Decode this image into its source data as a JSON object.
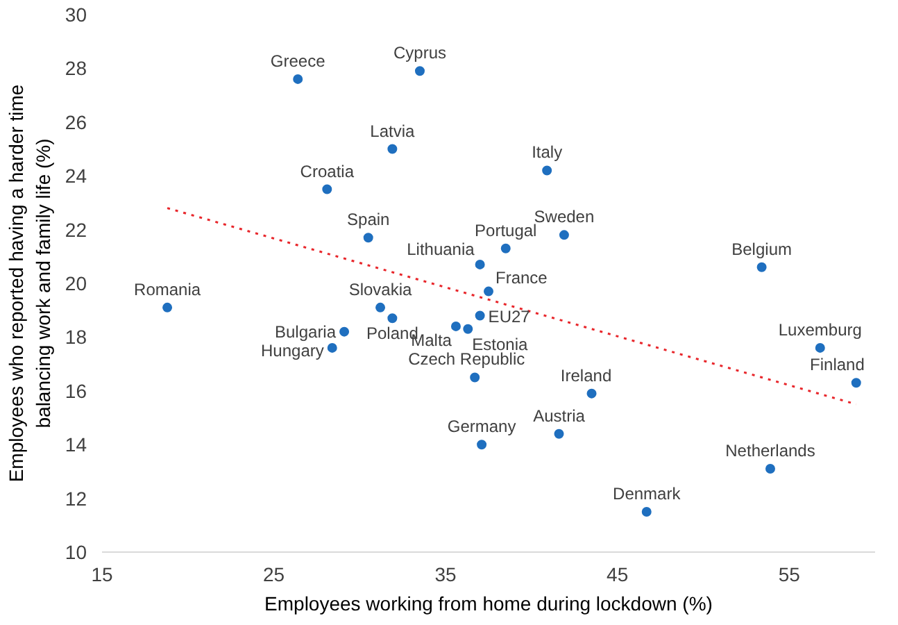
{
  "chart_data": {
    "type": "scatter",
    "xlabel": "Employees working from home during lockdown (%)",
    "ylabel": "Employees who reported having a harder time\nbalancing work and family life (%)",
    "xlim": [
      15,
      60
    ],
    "xticks": [
      15,
      25,
      35,
      45,
      55
    ],
    "ylim": [
      10,
      30
    ],
    "yticks": [
      10,
      12,
      14,
      16,
      18,
      20,
      22,
      24,
      26,
      28,
      30
    ],
    "grid": false,
    "series": [
      {
        "color": "#1f6fbf",
        "marker": "circle",
        "x": [
          26.4,
          33.5,
          31.9,
          40.9,
          28.1,
          30.5,
          38.5,
          41.9,
          37.0,
          53.4,
          18.8,
          37.5,
          31.2,
          37.0,
          35.6,
          36.3,
          29.1,
          31.9,
          28.4,
          56.8,
          36.7,
          58.9,
          43.5,
          41.6,
          37.1,
          53.9,
          46.7
        ],
        "values": [
          27.6,
          27.9,
          25.0,
          24.2,
          23.5,
          21.7,
          21.3,
          21.8,
          20.7,
          20.6,
          19.1,
          19.7,
          19.1,
          18.8,
          18.4,
          18.3,
          18.2,
          18.7,
          17.6,
          17.6,
          16.5,
          16.3,
          15.9,
          14.4,
          14.0,
          13.1,
          11.5
        ]
      },
      {
        "type": "line",
        "color": "#e8262b",
        "line_style": "dotted",
        "x": [
          18.8,
          58.9
        ],
        "values": [
          22.8,
          15.5
        ]
      }
    ],
    "annotations": [
      {
        "text": "Greece",
        "x": 26.4,
        "y": 27.6
      },
      {
        "text": "Cyprus",
        "x": 33.5,
        "y": 27.9
      },
      {
        "text": "Latvia",
        "x": 31.9,
        "y": 25.0
      },
      {
        "text": "Italy",
        "x": 40.9,
        "y": 24.2
      },
      {
        "text": "Croatia",
        "x": 28.1,
        "y": 23.5
      },
      {
        "text": "Spain",
        "x": 30.5,
        "y": 21.7
      },
      {
        "text": "Portugal",
        "x": 38.5,
        "y": 21.3
      },
      {
        "text": "Sweden",
        "x": 41.9,
        "y": 21.8
      },
      {
        "text": "Lithuania",
        "x": 37.0,
        "y": 20.7
      },
      {
        "text": "Belgium",
        "x": 53.4,
        "y": 20.6
      },
      {
        "text": "Romania",
        "x": 18.8,
        "y": 19.1
      },
      {
        "text": "France",
        "x": 37.5,
        "y": 19.7
      },
      {
        "text": "Slovakia",
        "x": 31.2,
        "y": 19.1
      },
      {
        "text": "EU27",
        "x": 37.0,
        "y": 18.8
      },
      {
        "text": "Malta",
        "x": 35.6,
        "y": 18.4
      },
      {
        "text": "Estonia",
        "x": 36.3,
        "y": 18.3
      },
      {
        "text": "Bulgaria",
        "x": 29.1,
        "y": 18.2
      },
      {
        "text": "Poland",
        "x": 31.9,
        "y": 18.7
      },
      {
        "text": "Hungary",
        "x": 28.4,
        "y": 17.6
      },
      {
        "text": "Luxemburg",
        "x": 56.8,
        "y": 17.6
      },
      {
        "text": "Czech Republic",
        "x": 36.7,
        "y": 16.5
      },
      {
        "text": "Finland",
        "x": 58.9,
        "y": 16.3
      },
      {
        "text": "Ireland",
        "x": 43.5,
        "y": 15.9
      },
      {
        "text": "Austria",
        "x": 41.6,
        "y": 14.4
      },
      {
        "text": "Germany",
        "x": 37.1,
        "y": 14.0
      },
      {
        "text": "Netherlands",
        "x": 53.9,
        "y": 13.1
      },
      {
        "text": "Denmark",
        "x": 46.7,
        "y": 11.5
      }
    ]
  }
}
